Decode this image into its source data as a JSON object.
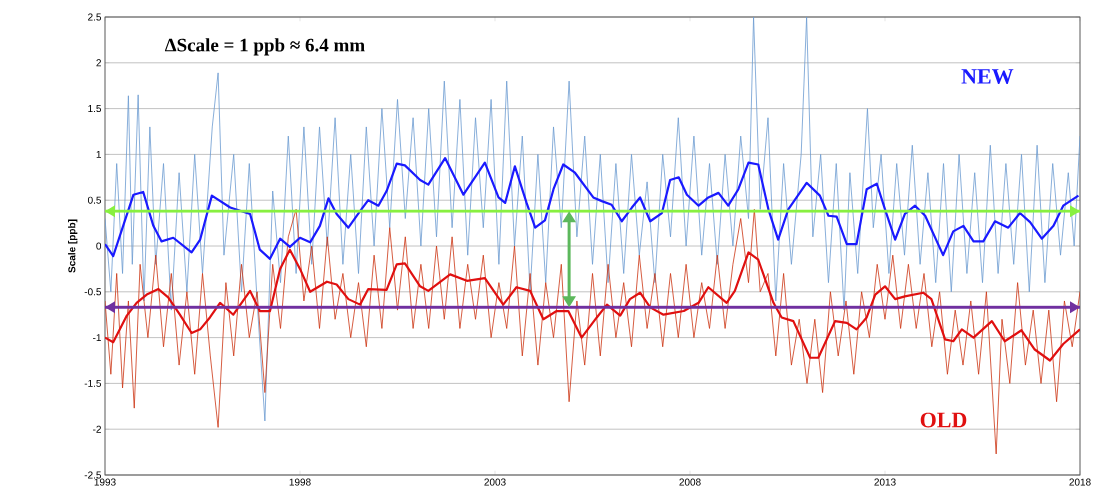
{
  "chart_data": {
    "type": "line",
    "ylabel": "Scale [ppb]",
    "annotations": [
      "ΔScale = 1 ppb ≈ 6.4 mm"
    ],
    "xlim": [
      1993,
      2018
    ],
    "xticks": [
      1993,
      1998,
      2003,
      2008,
      2013,
      2018
    ],
    "ylim": [
      -2.5,
      2.5
    ],
    "yticks": [
      -2.5,
      -2,
      -1.5,
      -1,
      -0.5,
      0,
      0.5,
      1,
      1.5,
      2,
      2.5
    ],
    "grid": "y",
    "marker": "none",
    "line_style": "solid",
    "ref_lines": [
      {
        "axis": "y",
        "value": 0.38,
        "color": "#88f040"
      },
      {
        "axis": "y",
        "value": -0.67,
        "color": "#7030a0"
      }
    ],
    "series": [
      {
        "color": "#6b9bd1",
        "x": [
          1993.0,
          1993.15,
          1993.3,
          1993.45,
          1993.6,
          1993.7,
          1993.85,
          1994.0,
          1994.15,
          1994.3,
          1994.5,
          1994.7,
          1994.9,
          1995.1,
          1995.3,
          1995.5,
          1995.75,
          1995.9,
          1996.05,
          1996.3,
          1996.5,
          1996.7,
          1996.9,
          1997.1,
          1997.3,
          1997.5,
          1997.7,
          1997.9,
          1998.1,
          1998.3,
          1998.5,
          1998.7,
          1998.9,
          1999.1,
          1999.3,
          1999.5,
          1999.7,
          1999.9,
          2000.1,
          2000.3,
          2000.5,
          2000.7,
          2000.9,
          2001.1,
          2001.3,
          2001.5,
          2001.7,
          2001.9,
          2002.1,
          2002.3,
          2002.5,
          2002.7,
          2002.9,
          2003.1,
          2003.3,
          2003.5,
          2003.7,
          2003.9,
          2004.1,
          2004.3,
          2004.5,
          2004.7,
          2004.9,
          2005.1,
          2005.3,
          2005.5,
          2005.7,
          2005.9,
          2006.1,
          2006.3,
          2006.5,
          2006.7,
          2006.9,
          2007.1,
          2007.3,
          2007.5,
          2007.7,
          2007.9,
          2008.1,
          2008.3,
          2008.5,
          2008.7,
          2008.9,
          2009.1,
          2009.3,
          2009.5,
          2009.63,
          2009.8,
          2010.0,
          2010.2,
          2010.4,
          2010.6,
          2010.85,
          2010.99,
          2011.15,
          2011.35,
          2011.55,
          2011.75,
          2011.95,
          2012.1,
          2012.3,
          2012.55,
          2012.7,
          2012.9,
          2013.1,
          2013.3,
          2013.5,
          2013.7,
          2013.9,
          2014.1,
          2014.3,
          2014.5,
          2014.7,
          2014.9,
          2015.1,
          2015.3,
          2015.5,
          2015.7,
          2015.9,
          2016.1,
          2016.3,
          2016.5,
          2016.7,
          2016.9,
          2017.1,
          2017.3,
          2017.5,
          2017.7,
          2017.85,
          2018.0
        ],
        "values": [
          0.3,
          -0.5,
          0.9,
          -0.3,
          1.64,
          -0.2,
          1.65,
          -0.6,
          1.3,
          -0.2,
          0.9,
          -0.7,
          0.8,
          -0.5,
          1.0,
          -0.3,
          1.3,
          1.89,
          -0.1,
          1.0,
          -0.5,
          0.9,
          -0.6,
          -1.91,
          0.6,
          -0.4,
          1.2,
          -0.3,
          1.3,
          -0.2,
          1.3,
          0.0,
          1.4,
          -0.2,
          1.0,
          -0.3,
          1.3,
          0.0,
          1.5,
          0.2,
          1.6,
          0.3,
          1.4,
          0.0,
          1.5,
          0.1,
          1.8,
          0.2,
          1.6,
          -0.1,
          1.4,
          0.2,
          1.6,
          -0.2,
          1.8,
          0.0,
          1.2,
          -0.5,
          1.0,
          -0.4,
          1.3,
          0.2,
          1.8,
          0.1,
          1.2,
          -0.2,
          1.0,
          -0.4,
          0.9,
          -0.3,
          1.0,
          -0.1,
          0.7,
          -0.4,
          1.0,
          0.1,
          1.4,
          0.0,
          1.2,
          -0.1,
          0.9,
          -0.2,
          1.0,
          0.0,
          1.2,
          0.3,
          2.5,
          0.4,
          1.4,
          -0.6,
          0.9,
          -0.2,
          1.0,
          2.5,
          0.1,
          1.0,
          -0.4,
          0.9,
          -0.7,
          0.8,
          -0.3,
          1.5,
          0.2,
          1.0,
          -0.3,
          0.9,
          -0.1,
          1.1,
          -0.2,
          0.8,
          -0.4,
          0.9,
          -0.5,
          1.0,
          -0.3,
          0.8,
          -0.4,
          1.1,
          -0.3,
          0.9,
          -0.2,
          1.0,
          -0.5,
          1.1,
          -0.4,
          0.9,
          -0.1,
          0.8,
          0.0,
          1.2
        ]
      },
      {
        "color": "#cc3311",
        "x": [
          1993.0,
          1993.15,
          1993.3,
          1993.45,
          1993.6,
          1993.75,
          1993.9,
          1994.1,
          1994.3,
          1994.5,
          1994.7,
          1994.9,
          1995.1,
          1995.3,
          1995.5,
          1995.7,
          1995.9,
          1996.1,
          1996.3,
          1996.5,
          1996.7,
          1996.9,
          1997.1,
          1997.3,
          1997.5,
          1997.7,
          1997.9,
          1998.1,
          1998.3,
          1998.5,
          1998.7,
          1998.9,
          1999.1,
          1999.3,
          1999.5,
          1999.7,
          1999.9,
          2000.1,
          2000.3,
          2000.5,
          2000.7,
          2000.9,
          2001.1,
          2001.3,
          2001.5,
          2001.7,
          2001.9,
          2002.1,
          2002.3,
          2002.5,
          2002.7,
          2002.9,
          2003.1,
          2003.3,
          2003.5,
          2003.7,
          2003.9,
          2004.1,
          2004.3,
          2004.5,
          2004.7,
          2004.9,
          2005.1,
          2005.3,
          2005.5,
          2005.7,
          2005.9,
          2006.1,
          2006.3,
          2006.5,
          2006.7,
          2006.9,
          2007.1,
          2007.3,
          2007.5,
          2007.7,
          2007.9,
          2008.1,
          2008.3,
          2008.5,
          2008.7,
          2008.9,
          2009.1,
          2009.3,
          2009.5,
          2009.65,
          2009.8,
          2010.0,
          2010.2,
          2010.4,
          2010.6,
          2010.8,
          2011.0,
          2011.2,
          2011.4,
          2011.6,
          2011.8,
          2012.0,
          2012.2,
          2012.4,
          2012.6,
          2012.8,
          2013.0,
          2013.2,
          2013.4,
          2013.6,
          2013.8,
          2014.0,
          2014.2,
          2014.4,
          2014.6,
          2014.8,
          2015.0,
          2015.2,
          2015.4,
          2015.6,
          2015.85,
          2016.0,
          2016.2,
          2016.4,
          2016.6,
          2016.8,
          2017.0,
          2017.2,
          2017.4,
          2017.6,
          2017.8,
          2018.0
        ],
        "values": [
          -0.6,
          -1.4,
          -0.3,
          -1.55,
          -0.6,
          -1.77,
          -0.2,
          -1.0,
          -0.1,
          -1.1,
          -0.3,
          -1.3,
          -0.5,
          -1.4,
          -0.3,
          -1.2,
          -1.98,
          -0.4,
          -1.2,
          -0.2,
          -1.0,
          -0.5,
          -1.6,
          -0.2,
          -0.9,
          0.1,
          0.4,
          -0.6,
          0.0,
          -0.9,
          0.1,
          -0.8,
          -0.3,
          -1.0,
          -0.4,
          -1.1,
          -0.1,
          -0.9,
          0.2,
          -0.7,
          0.1,
          -0.9,
          -0.2,
          -0.9,
          0.0,
          -0.8,
          0.1,
          -0.9,
          -0.2,
          -0.8,
          -0.1,
          -1.0,
          -0.4,
          -0.9,
          0.0,
          -1.2,
          -0.3,
          -1.3,
          -0.4,
          -1.0,
          -0.2,
          -1.7,
          -0.6,
          -1.3,
          -0.3,
          -1.2,
          -0.2,
          -1.0,
          -0.4,
          -1.1,
          -0.1,
          -0.9,
          -0.3,
          -1.1,
          -0.3,
          -1.0,
          -0.2,
          -1.0,
          -0.4,
          -0.9,
          -0.1,
          -0.9,
          -0.2,
          0.3,
          -0.4,
          0.4,
          -0.5,
          -0.3,
          -1.2,
          -0.3,
          -1.3,
          -0.8,
          -1.5,
          -0.8,
          -1.6,
          -0.5,
          -1.2,
          -0.6,
          -1.4,
          -0.5,
          -1.0,
          -0.2,
          -0.8,
          -0.1,
          -0.9,
          -0.2,
          -0.9,
          -0.3,
          -1.1,
          -0.5,
          -1.4,
          -0.7,
          -1.3,
          -0.6,
          -1.4,
          -0.5,
          -2.27,
          -0.8,
          -1.5,
          -0.4,
          -1.3,
          -0.7,
          -1.5,
          -0.7,
          -1.7,
          -0.6,
          -1.1,
          -0.5
        ]
      },
      {
        "name": "NEW",
        "color": "#1a1aff",
        "x": [
          1993.0,
          1993.21,
          1993.73,
          1993.98,
          1994.24,
          1994.45,
          1994.75,
          1995.22,
          1995.44,
          1995.74,
          1996.21,
          1996.72,
          1996.97,
          1997.23,
          1997.49,
          1997.74,
          1998.0,
          1998.26,
          1998.51,
          1998.73,
          1998.94,
          1999.24,
          1999.54,
          1999.75,
          2000.01,
          2000.22,
          2000.48,
          2000.69,
          2001.08,
          2001.29,
          2001.72,
          2002.19,
          2002.74,
          2003.09,
          2003.26,
          2003.51,
          2003.81,
          2004.03,
          2004.28,
          2004.5,
          2004.75,
          2005.05,
          2005.52,
          2005.74,
          2005.99,
          2006.25,
          2006.51,
          2006.72,
          2006.98,
          2007.28,
          2007.49,
          2007.71,
          2007.92,
          2008.22,
          2008.47,
          2008.73,
          2008.98,
          2009.24,
          2009.5,
          2009.75,
          2010.01,
          2010.26,
          2010.52,
          2010.99,
          2011.33,
          2011.55,
          2011.76,
          2012.02,
          2012.27,
          2012.53,
          2012.79,
          2013.0,
          2013.26,
          2013.51,
          2013.77,
          2014.03,
          2014.49,
          2014.75,
          2015.01,
          2015.27,
          2015.52,
          2015.82,
          2016.16,
          2016.46,
          2016.72,
          2017.02,
          2017.32,
          2017.57,
          2017.96
        ],
        "values": [
          0.02,
          -0.11,
          0.56,
          0.59,
          0.22,
          0.05,
          0.09,
          -0.07,
          0.07,
          0.55,
          0.42,
          0.35,
          -0.04,
          -0.14,
          0.08,
          -0.01,
          0.09,
          0.04,
          0.22,
          0.52,
          0.35,
          0.2,
          0.38,
          0.5,
          0.44,
          0.6,
          0.9,
          0.88,
          0.72,
          0.67,
          0.96,
          0.56,
          0.91,
          0.53,
          0.47,
          0.87,
          0.47,
          0.2,
          0.28,
          0.62,
          0.89,
          0.8,
          0.53,
          0.49,
          0.45,
          0.27,
          0.42,
          0.53,
          0.27,
          0.36,
          0.72,
          0.75,
          0.56,
          0.44,
          0.53,
          0.58,
          0.44,
          0.62,
          0.91,
          0.89,
          0.4,
          0.07,
          0.4,
          0.69,
          0.55,
          0.33,
          0.32,
          0.02,
          0.02,
          0.62,
          0.68,
          0.4,
          0.07,
          0.35,
          0.44,
          0.33,
          -0.1,
          0.16,
          0.22,
          0.05,
          0.05,
          0.27,
          0.2,
          0.36,
          0.26,
          0.08,
          0.22,
          0.44,
          0.55
        ]
      },
      {
        "name": "OLD",
        "color": "#e01010",
        "x": [
          1993.0,
          1993.21,
          1993.56,
          1993.81,
          1994.07,
          1994.37,
          1994.62,
          1994.92,
          1995.22,
          1995.44,
          1995.69,
          1995.95,
          1996.29,
          1996.72,
          1996.97,
          1997.23,
          1997.49,
          1997.74,
          1998.0,
          1998.26,
          1998.69,
          1998.94,
          1999.24,
          1999.54,
          1999.75,
          2000.22,
          2000.48,
          2000.69,
          2001.08,
          2001.29,
          2001.85,
          2002.28,
          2002.74,
          2003.21,
          2003.55,
          2003.9,
          2004.24,
          2004.58,
          2004.88,
          2005.22,
          2005.61,
          2005.87,
          2006.21,
          2006.46,
          2006.72,
          2006.98,
          2007.32,
          2007.84,
          2008.22,
          2008.47,
          2008.94,
          2009.15,
          2009.5,
          2009.75,
          2010.14,
          2010.35,
          2010.65,
          2011.08,
          2011.29,
          2011.72,
          2012.02,
          2012.27,
          2012.53,
          2012.75,
          2013.0,
          2013.26,
          2013.51,
          2013.98,
          2014.19,
          2014.54,
          2014.75,
          2014.97,
          2015.27,
          2015.74,
          2016.07,
          2016.5,
          2016.84,
          2017.23,
          2017.57,
          2018.0
        ],
        "values": [
          -1.0,
          -1.05,
          -0.76,
          -0.62,
          -0.53,
          -0.47,
          -0.56,
          -0.75,
          -0.95,
          -0.91,
          -0.78,
          -0.62,
          -0.75,
          -0.49,
          -0.71,
          -0.71,
          -0.25,
          -0.04,
          -0.25,
          -0.5,
          -0.39,
          -0.42,
          -0.58,
          -0.64,
          -0.47,
          -0.48,
          -0.2,
          -0.19,
          -0.44,
          -0.49,
          -0.31,
          -0.38,
          -0.35,
          -0.64,
          -0.45,
          -0.49,
          -0.8,
          -0.71,
          -0.71,
          -1.0,
          -0.78,
          -0.64,
          -0.76,
          -0.58,
          -0.51,
          -0.67,
          -0.75,
          -0.71,
          -0.62,
          -0.45,
          -0.62,
          -0.49,
          -0.07,
          -0.15,
          -0.62,
          -0.78,
          -0.82,
          -1.22,
          -1.22,
          -0.82,
          -0.84,
          -0.91,
          -0.78,
          -0.53,
          -0.44,
          -0.58,
          -0.55,
          -0.51,
          -0.58,
          -1.02,
          -1.04,
          -0.91,
          -1.0,
          -0.82,
          -1.04,
          -0.92,
          -1.13,
          -1.25,
          -1.07,
          -0.91
        ]
      }
    ]
  }
}
